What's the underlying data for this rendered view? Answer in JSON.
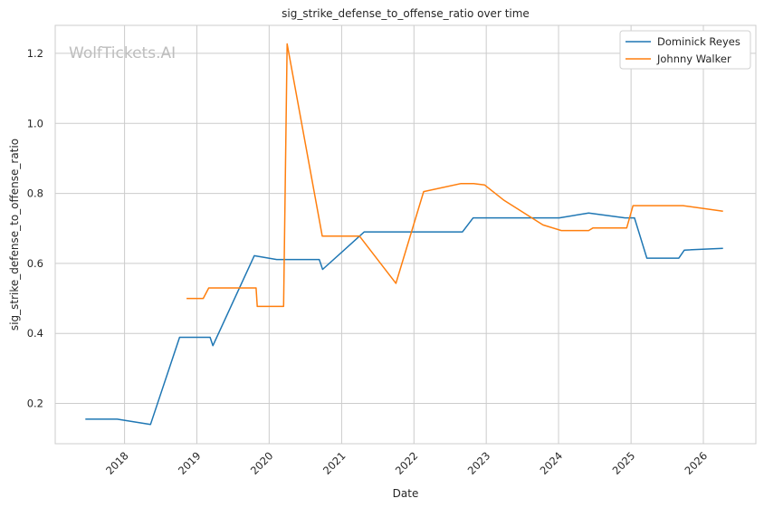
{
  "chart_data": {
    "type": "line",
    "title": "sig_strike_defense_to_offense_ratio over time",
    "xlabel": "Date",
    "ylabel": "sig_strike_defense_to_offense_ratio",
    "watermark": "WolfTickets.AI",
    "x_type": "date",
    "xlim": [
      "2017-01-16",
      "2026-09-23"
    ],
    "ylim": [
      0.085,
      1.28
    ],
    "x_ticks": [
      "2018-01-01",
      "2019-01-01",
      "2020-01-01",
      "2021-01-01",
      "2022-01-01",
      "2023-01-01",
      "2024-01-01",
      "2025-01-01",
      "2026-01-01"
    ],
    "x_tick_labels": [
      "2018",
      "2019",
      "2020",
      "2021",
      "2022",
      "2023",
      "2024",
      "2025",
      "2026"
    ],
    "y_ticks": [
      0.2,
      0.4,
      0.6,
      0.8,
      1.0,
      1.2
    ],
    "y_tick_labels": [
      "0.2",
      "0.4",
      "0.6",
      "0.8",
      "1.0",
      "1.2"
    ],
    "grid": true,
    "legend_position": "top-right",
    "series": [
      {
        "name": "Dominick Reyes",
        "color": "#1f77b4",
        "x": [
          "2017-06-17",
          "2017-11-25",
          "2018-05-12",
          "2018-10-06",
          "2019-03-09",
          "2019-03-23",
          "2019-10-18",
          "2020-02-08",
          "2020-09-10",
          "2020-09-27",
          "2021-04-25",
          "2022-09-03",
          "2022-10-27",
          "2023-06-13",
          "2024-01-05",
          "2024-06-01",
          "2024-12-01",
          "2025-01-18",
          "2025-03-22",
          "2025-08-30",
          "2025-09-27",
          "2026-04-10"
        ],
        "y": [
          0.155,
          0.155,
          0.14,
          0.389,
          0.389,
          0.365,
          0.622,
          0.611,
          0.611,
          0.583,
          0.69,
          0.69,
          0.73,
          0.73,
          0.73,
          0.744,
          0.73,
          0.73,
          0.615,
          0.615,
          0.638,
          0.643
        ]
      },
      {
        "name": "Johnny Walker",
        "color": "#ff7f0e",
        "x": [
          "2018-11-10",
          "2019-02-02",
          "2019-03-02",
          "2019-10-27",
          "2019-11-02",
          "2020-03-14",
          "2020-04-01",
          "2020-09-25",
          "2021-04-01",
          "2021-10-02",
          "2022-02-19",
          "2022-08-27",
          "2022-10-29",
          "2022-12-24",
          "2023-04-01",
          "2023-10-14",
          "2024-01-15",
          "2024-06-01",
          "2024-06-22",
          "2024-12-10",
          "2025-01-11",
          "2025-09-20",
          "2026-04-10"
        ],
        "y": [
          0.5,
          0.5,
          0.53,
          0.53,
          0.477,
          0.477,
          1.227,
          0.678,
          0.678,
          0.543,
          0.805,
          0.828,
          0.828,
          0.824,
          0.78,
          0.71,
          0.694,
          0.694,
          0.701,
          0.701,
          0.765,
          0.765,
          0.749
        ]
      }
    ]
  }
}
